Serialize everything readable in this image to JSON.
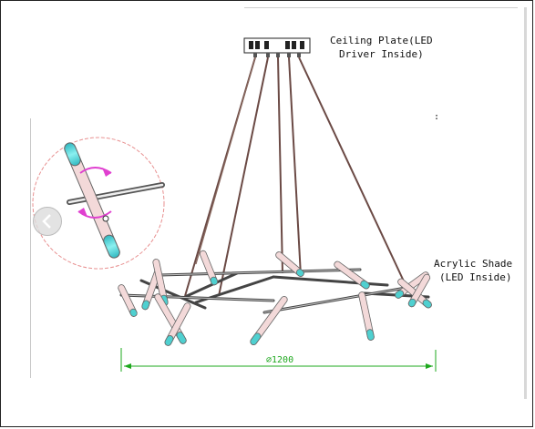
{
  "labels": {
    "ceiling_line1": "Ceiling Plate(LED",
    "ceiling_line2": "Driver Inside)",
    "shade_line1": "Acrylic Shade",
    "shade_line2": "(LED Inside)",
    "dimension": "⌀1200",
    "dot_mark": ":"
  },
  "icons": {
    "nav_prev": "chevron-left-icon"
  },
  "colors": {
    "wire": "#6b4a45",
    "rod": "#555555",
    "shade_body": "#f3d9d9",
    "shade_tip": "#4fd0d0",
    "dimension": "#1ea81e",
    "rotate_arrow": "#e040d0",
    "detail_circle": "#e89090"
  }
}
